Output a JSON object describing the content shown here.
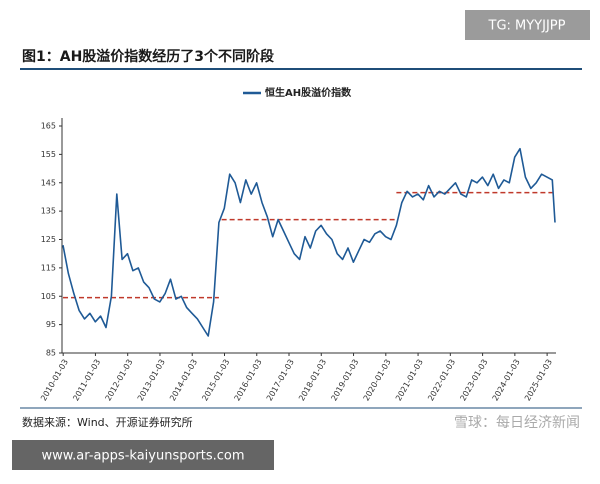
{
  "chart_data": {
    "type": "line",
    "title": "图1：AH股溢价指数经历了3个不同阶段",
    "source": "数据来源：Wind、开源证券研究所",
    "x": [
      "2010-01",
      "2010-03",
      "2010-05",
      "2010-07",
      "2010-09",
      "2010-11",
      "2011-01",
      "2011-03",
      "2011-05",
      "2011-07",
      "2011-09",
      "2011-11",
      "2012-01",
      "2012-03",
      "2012-05",
      "2012-07",
      "2012-09",
      "2012-11",
      "2013-01",
      "2013-03",
      "2013-05",
      "2013-07",
      "2013-09",
      "2013-11",
      "2014-01",
      "2014-03",
      "2014-05",
      "2014-07",
      "2014-09",
      "2014-11",
      "2015-01",
      "2015-03",
      "2015-05",
      "2015-07",
      "2015-09",
      "2015-11",
      "2016-01",
      "2016-03",
      "2016-05",
      "2016-07",
      "2016-09",
      "2016-11",
      "2017-01",
      "2017-03",
      "2017-05",
      "2017-07",
      "2017-09",
      "2017-11",
      "2018-01",
      "2018-03",
      "2018-05",
      "2018-07",
      "2018-09",
      "2018-11",
      "2019-01",
      "2019-03",
      "2019-05",
      "2019-07",
      "2019-09",
      "2019-11",
      "2020-01",
      "2020-03",
      "2020-05",
      "2020-07",
      "2020-09",
      "2020-11",
      "2021-01",
      "2021-03",
      "2021-05",
      "2021-07",
      "2021-09",
      "2021-11",
      "2022-01",
      "2022-03",
      "2022-05",
      "2022-07",
      "2022-09",
      "2022-11",
      "2023-01",
      "2023-03",
      "2023-05",
      "2023-07",
      "2023-09",
      "2023-11",
      "2024-01",
      "2024-03",
      "2024-05",
      "2024-07",
      "2024-09",
      "2024-11",
      "2025-03",
      "2025-04"
    ],
    "series": [
      {
        "name": "恒生AH股溢价指数",
        "color": "#1f5a96",
        "values": [
          123,
          113,
          106,
          100,
          97,
          99,
          96,
          98,
          94,
          105,
          141,
          118,
          120,
          114,
          115,
          110,
          108,
          104,
          103,
          106,
          111,
          104,
          105,
          101,
          99,
          97,
          94,
          91,
          103,
          131,
          136,
          148,
          145,
          138,
          146,
          141,
          145,
          138,
          133,
          126,
          132,
          128,
          124,
          120,
          118,
          126,
          122,
          128,
          130,
          127,
          125,
          120,
          118,
          122,
          117,
          121,
          125,
          124,
          127,
          128,
          126,
          125,
          130,
          138,
          142,
          140,
          141,
          139,
          144,
          140,
          142,
          141,
          143,
          145,
          141,
          140,
          146,
          145,
          147,
          144,
          148,
          143,
          146,
          145,
          154,
          157,
          147,
          143,
          145,
          148,
          146,
          131
        ]
      }
    ],
    "reference_lines": [
      {
        "value": 104.5,
        "x": [
          "2010-01",
          "2014-11"
        ],
        "color": "#c0392b"
      },
      {
        "value": 132,
        "x": [
          "2014-12",
          "2020-05"
        ],
        "color": "#c0392b"
      },
      {
        "value": 141.5,
        "x": [
          "2020-05",
          "2025-04"
        ],
        "color": "#c0392b"
      }
    ],
    "xlim": [
      "2010-01",
      "2025-04"
    ],
    "xticks": [
      "2010-01-03",
      "2011-01-03",
      "2012-01-03",
      "2013-01-03",
      "2014-01-03",
      "2015-01-03",
      "2016-01-03",
      "2017-01-03",
      "2018-01-03",
      "2019-01-03",
      "2020-01-03",
      "2021-01-03",
      "2022-01-03",
      "2023-01-03",
      "2024-01-03",
      "2025-01-03"
    ],
    "ylim": [
      85,
      165
    ],
    "yticks": [
      85,
      95,
      105,
      115,
      125,
      135,
      145,
      155,
      165
    ]
  },
  "watermarks": [
    "TG: MYYJJPP",
    "www.ar-apps-kaiyunsports.com",
    "雪球：每日经济新闻"
  ]
}
